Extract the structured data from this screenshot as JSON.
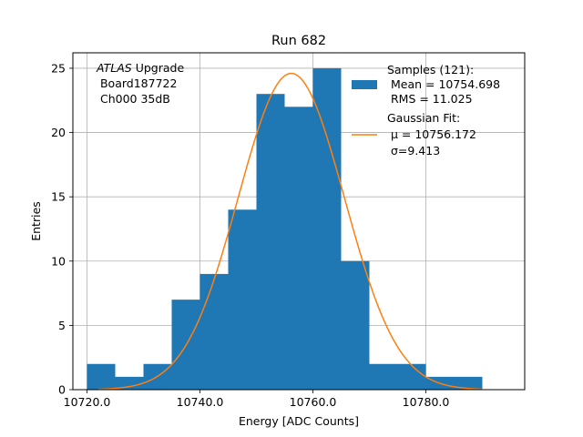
{
  "chart_data": {
    "type": "bar",
    "title": "Run 682",
    "xlabel": "Energy [ADC Counts]",
    "ylabel": "Entries",
    "xlim": [
      10717.5,
      10797.5
    ],
    "ylim": [
      0,
      26.2
    ],
    "xticks": [
      10720,
      10740,
      10760,
      10780
    ],
    "xtick_labels": [
      "10720.0",
      "10740.0",
      "10760.0",
      "10780.0"
    ],
    "yticks": [
      0,
      5,
      10,
      15,
      20,
      25
    ],
    "ytick_labels": [
      "0",
      "5",
      "10",
      "15",
      "20",
      "25"
    ],
    "grid": true,
    "legend_placement": "top-right",
    "annotation": {
      "italic": "ATLAS",
      "rest": " Upgrade",
      "line2": " Board187722",
      "line3": " Ch000 35dB"
    },
    "histogram": {
      "name": "Samples (121):",
      "color": "#1f77b4",
      "bins": [
        {
          "x0": 10720,
          "x1": 10725,
          "count": 2
        },
        {
          "x0": 10725,
          "x1": 10730,
          "count": 1
        },
        {
          "x0": 10730,
          "x1": 10735,
          "count": 2
        },
        {
          "x0": 10735,
          "x1": 10740,
          "count": 7
        },
        {
          "x0": 10740,
          "x1": 10745,
          "count": 9
        },
        {
          "x0": 10745,
          "x1": 10750,
          "count": 14
        },
        {
          "x0": 10750,
          "x1": 10755,
          "count": 23
        },
        {
          "x0": 10755,
          "x1": 10760,
          "count": 22
        },
        {
          "x0": 10760,
          "x1": 10765,
          "count": 25
        },
        {
          "x0": 10765,
          "x1": 10770,
          "count": 10
        },
        {
          "x0": 10770,
          "x1": 10780,
          "count": 2
        },
        {
          "x0": 10780,
          "x1": 10790,
          "count": 1
        }
      ]
    },
    "fit": {
      "name": "Gaussian Fit:",
      "color": "#ff7f0e",
      "mu": 10756.172,
      "sigma": 9.413,
      "amplitude": 24.6,
      "x_range": [
        10722,
        10790
      ]
    },
    "legend": {
      "hist_line1": "Samples (121):",
      "hist_line2": " Mean = 10754.698",
      "hist_line3": " RMS = 11.025",
      "fit_line1": "Gaussian Fit:",
      "fit_line2": " μ = 10756.172",
      "fit_line3": " σ=9.413"
    }
  }
}
